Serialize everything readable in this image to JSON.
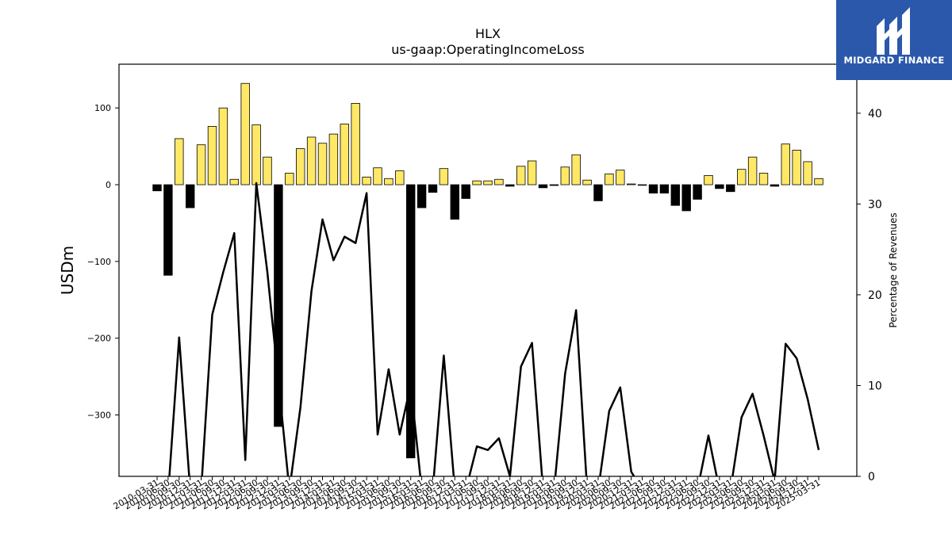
{
  "brand": {
    "name": "MIDGARD FINANCE",
    "bg": "#2b58ab"
  },
  "colors": {
    "positive": "#ffe866",
    "negative": "#000000",
    "line": "#000000"
  },
  "chart_data": {
    "type": "bar",
    "title": "HLX",
    "subtitle": "us-gaap:OperatingIncomeLoss",
    "ylabel": "USDm",
    "y2label": "Percentage of Revenues",
    "ylim": [
      -380,
      157
    ],
    "y2lim": [
      0,
      45.4
    ],
    "yticks": [
      -300,
      -200,
      -100,
      0,
      100
    ],
    "y2ticks": [
      0,
      10,
      20,
      30,
      40
    ],
    "yticklabels": [
      "−300",
      "−200",
      "−100",
      "0",
      "100"
    ],
    "y2ticklabels": [
      "0",
      "10",
      "20",
      "30",
      "40"
    ],
    "categories": [
      "2010-03-31",
      "2010-06-30",
      "2010-09-30",
      "2010-12-31",
      "2011-03-31",
      "2011-06-30",
      "2011-09-30",
      "2011-12-31",
      "2012-03-31",
      "2012-06-30",
      "2012-09-30",
      "2012-12-31",
      "2013-03-31",
      "2013-06-30",
      "2013-09-30",
      "2013-12-31",
      "2014-03-31",
      "2014-06-30",
      "2014-09-30",
      "2014-12-31",
      "2015-03-31",
      "2015-06-30",
      "2015-09-30",
      "2015-12-31",
      "2016-03-31",
      "2016-06-30",
      "2016-09-30",
      "2016-12-31",
      "2017-03-31",
      "2017-06-30",
      "2017-09-30",
      "2017-12-31",
      "2018-03-31",
      "2018-06-30",
      "2018-09-30",
      "2018-12-31",
      "2019-03-31",
      "2019-06-30",
      "2019-09-30",
      "2019-12-31",
      "2020-03-31",
      "2020-06-30",
      "2020-09-30",
      "2020-12-31",
      "2021-03-31",
      "2021-06-30",
      "2021-09-30",
      "2021-12-31",
      "2022-03-31",
      "2022-06-30",
      "2022-09-30",
      "2022-12-31",
      "2023-03-31",
      "2023-06-30",
      "2023-09-30",
      "2023-12-31",
      "2024-03-31",
      "2024-06-30",
      "2024-09-30",
      "2024-12-31",
      "2025-03-31"
    ],
    "series": [
      {
        "kind": "bar",
        "values": [
          -8,
          -118,
          60,
          -30,
          52,
          76,
          100,
          7,
          132,
          78,
          36,
          -315,
          15,
          47,
          62,
          54,
          66,
          79,
          106,
          10,
          22,
          8,
          18,
          -356,
          -30,
          -10,
          21,
          -45,
          -18,
          5,
          5,
          7,
          -2,
          24,
          31,
          -4,
          -1,
          23,
          39,
          6,
          -21,
          14,
          19,
          1,
          0,
          -11,
          -11,
          -27,
          -34,
          -19,
          12,
          -5,
          -9,
          20,
          36,
          15,
          -2,
          53,
          45,
          30,
          8
        ]
      },
      {
        "kind": "line",
        "axis": "right",
        "values": [
          -1.5,
          -2,
          15.3,
          -1.5,
          -1.5,
          17.8,
          22.5,
          26.8,
          1.8,
          32.3,
          22.5,
          10.5,
          -1.5,
          7.6,
          20.4,
          28.3,
          23.8,
          26.4,
          25.7,
          31.2,
          4.6,
          11.8,
          4.6,
          10.1,
          -1.5,
          -1.5,
          13.3,
          -1.5,
          -1.5,
          3.3,
          2.9,
          4.2,
          0,
          12.1,
          14.7,
          -1.5,
          -1.5,
          11.3,
          18.3,
          -1.5,
          -1.5,
          7.2,
          9.8,
          0.5,
          -1.5,
          -1.5,
          -1.5,
          -1.5,
          -1.5,
          -1.5,
          4.5,
          -1.5,
          -1.5,
          6.5,
          9.1,
          4.5,
          -0.5,
          14.6,
          13,
          8.5,
          2.9
        ]
      }
    ],
    "grid": false
  }
}
